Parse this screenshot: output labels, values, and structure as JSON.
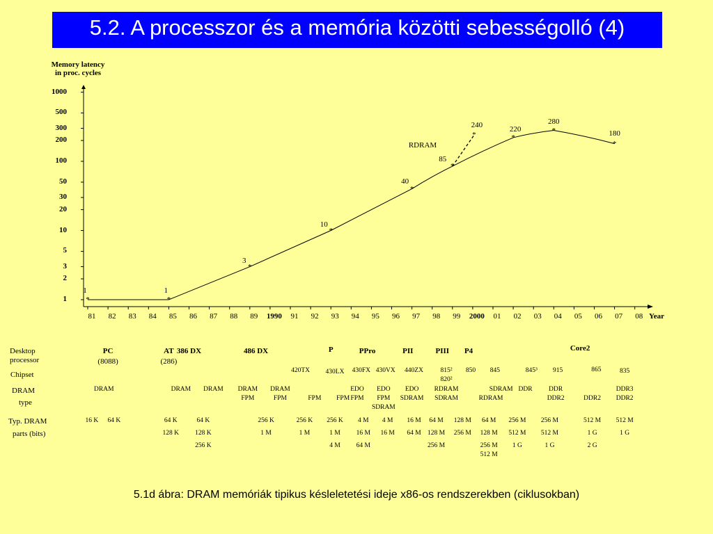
{
  "title": "5.2. A processzor és a memória közötti sebességolló (4)",
  "caption": "5.1d ábra: DRAM memóriák tipikus késleletetési ideje x86-os rendszerekben (ciklusokban)",
  "colors": {
    "background": "#ffff99",
    "title_bar": "#0000ff",
    "title_text": "#ffffff",
    "ink": "#000000"
  },
  "chart_data": {
    "type": "line",
    "ylabel": [
      "Memory latency",
      "in proc. cycles"
    ],
    "xlabel": "Year",
    "y_scale": "log",
    "ylim": [
      1,
      1000
    ],
    "y_ticks": [
      {
        "v": 1,
        "t": "1"
      },
      {
        "v": 2,
        "t": "2"
      },
      {
        "v": 3,
        "t": "3"
      },
      {
        "v": 5,
        "t": "5"
      },
      {
        "v": 10,
        "t": "10"
      },
      {
        "v": 20,
        "t": "20"
      },
      {
        "v": 30,
        "t": "30"
      },
      {
        "v": 50,
        "t": "50"
      },
      {
        "v": 100,
        "t": "100"
      },
      {
        "v": 200,
        "t": "200"
      },
      {
        "v": 300,
        "t": "300"
      },
      {
        "v": 500,
        "t": "500"
      },
      {
        "v": 1000,
        "t": "1000"
      }
    ],
    "x_ticks": [
      {
        "v": 1981,
        "t": "81"
      },
      {
        "v": 1982,
        "t": "82"
      },
      {
        "v": 1983,
        "t": "83"
      },
      {
        "v": 1984,
        "t": "84"
      },
      {
        "v": 1985,
        "t": "85"
      },
      {
        "v": 1986,
        "t": "86"
      },
      {
        "v": 1987,
        "t": "87"
      },
      {
        "v": 1988,
        "t": "88"
      },
      {
        "v": 1989,
        "t": "89"
      },
      {
        "v": 1990,
        "t": "1990",
        "bold": true
      },
      {
        "v": 1991,
        "t": "91"
      },
      {
        "v": 1992,
        "t": "92"
      },
      {
        "v": 1993,
        "t": "93"
      },
      {
        "v": 1994,
        "t": "94"
      },
      {
        "v": 1995,
        "t": "95"
      },
      {
        "v": 1996,
        "t": "96"
      },
      {
        "v": 1997,
        "t": "97"
      },
      {
        "v": 1998,
        "t": "98"
      },
      {
        "v": 1999,
        "t": "99"
      },
      {
        "v": 2000,
        "t": "2000",
        "bold": true
      },
      {
        "v": 2001,
        "t": "01"
      },
      {
        "v": 2002,
        "t": "02"
      },
      {
        "v": 2003,
        "t": "03"
      },
      {
        "v": 2004,
        "t": "04"
      },
      {
        "v": 2005,
        "t": "05"
      },
      {
        "v": 2006,
        "t": "06"
      },
      {
        "v": 2007,
        "t": "07"
      },
      {
        "v": 2008,
        "t": "08"
      }
    ],
    "points": [
      {
        "x": 1981,
        "y": 1,
        "label": "1"
      },
      {
        "x": 1985,
        "y": 1,
        "label": "1"
      },
      {
        "x": 1989,
        "y": 3,
        "label": "3"
      },
      {
        "x": 1993,
        "y": 10,
        "label": "10"
      },
      {
        "x": 1997,
        "y": 40,
        "label": "40"
      },
      {
        "x": 1999,
        "y": 85,
        "label": "85"
      },
      {
        "x": 2002,
        "y": 220,
        "label": "220"
      },
      {
        "x": 2004,
        "y": 280,
        "label": "280"
      },
      {
        "x": 2007,
        "y": 180,
        "label": "180"
      }
    ],
    "rdram_point": {
      "x": 2000,
      "y": 240,
      "label": "240"
    },
    "annotations": [
      {
        "text": "RDRAM"
      }
    ],
    "grid": false
  },
  "table": {
    "row_headers": [
      {
        "id": "processor",
        "lines": [
          "Desktop",
          "processor"
        ]
      },
      {
        "id": "chipset",
        "lines": [
          "Chipset"
        ]
      },
      {
        "id": "dram",
        "lines": [
          "DRAM",
          "type"
        ]
      },
      {
        "id": "parts",
        "lines": [
          "Typ. DRAM",
          "parts (bits)"
        ]
      }
    ],
    "processors": [
      {
        "t": "PC",
        "x": 1982
      },
      {
        "t": "(8088)",
        "x": 1982
      },
      {
        "t": "AT",
        "x": 1985
      },
      {
        "t": "386 DX",
        "x": 1986
      },
      {
        "t": "(286)",
        "x": 1985
      },
      {
        "t": "486 DX",
        "x": 1989.3
      },
      {
        "t": "P",
        "x": 1993
      },
      {
        "t": "PPro",
        "x": 1994.8
      },
      {
        "t": "PII",
        "x": 1996.8
      },
      {
        "t": "PIII",
        "x": 1998.5
      },
      {
        "t": "P4",
        "x": 1999.8
      },
      {
        "t": "Core2",
        "x": 2005.3
      }
    ],
    "chipsets": [
      {
        "t": "420TX",
        "x": 1991.5
      },
      {
        "t": "430LX",
        "x": 1993.2
      },
      {
        "t": "430FX",
        "x": 1994.5
      },
      {
        "t": "430VX",
        "x": 1995.7
      },
      {
        "t": "440ZX",
        "x": 1997.1
      },
      {
        "t": "815²",
        "x": 1998.7
      },
      {
        "t": "820²",
        "x": 1998.7
      },
      {
        "t": "850",
        "x": 1999.9
      },
      {
        "t": "845",
        "x": 2001.1
      },
      {
        "t": "845³",
        "x": 2002.9
      },
      {
        "t": "915",
        "x": 2004.2
      },
      {
        "t": "865",
        "x": 2006.1
      },
      {
        "t": "835",
        "x": 2007.5
      }
    ],
    "dram_types": [
      {
        "t": "DRAM",
        "x": 1981.8
      },
      {
        "t": "DRAM",
        "x": 1985.6
      },
      {
        "t": "DRAM",
        "x": 1987.2
      },
      {
        "t": "DRAM",
        "x": 1988.9
      },
      {
        "t": "FPM",
        "x": 1988.9
      },
      {
        "t": "DRAM",
        "x": 1990.5
      },
      {
        "t": "FPM",
        "x": 1990.5
      },
      {
        "t": "FPM",
        "x": 1992.2
      },
      {
        "t": "FPM",
        "x": 1993.6
      },
      {
        "t": "EDO",
        "x": 1994.3
      },
      {
        "t": "FPM",
        "x": 1994.3
      },
      {
        "t": "EDO",
        "x": 1995.6
      },
      {
        "t": "FPM",
        "x": 1995.6
      },
      {
        "t": "SDRAM",
        "x": 1995.6
      },
      {
        "t": "EDO",
        "x": 1997.0
      },
      {
        "t": "SDRAM",
        "x": 1997.0
      },
      {
        "t": "RDRAM",
        "x": 1998.7
      },
      {
        "t": "SDRAM",
        "x": 1998.7
      },
      {
        "t": "RDRAM",
        "x": 2000.9
      },
      {
        "t": "SDRAM",
        "x": 2001.4
      },
      {
        "t": "DDR",
        "x": 2002.6
      },
      {
        "t": "DDR",
        "x": 2004.1
      },
      {
        "t": "DDR2",
        "x": 2004.1
      },
      {
        "t": "DDR2",
        "x": 2005.9
      },
      {
        "t": "DDR3",
        "x": 2007.5
      },
      {
        "t": "DDR2",
        "x": 2007.5
      }
    ],
    "dram_parts": [
      {
        "t": "16 K",
        "x": 1981.2,
        "r": 0
      },
      {
        "t": "64 K",
        "x": 1982.3,
        "r": 0
      },
      {
        "t": "64 K",
        "x": 1985.1,
        "r": 0
      },
      {
        "t": "128 K",
        "x": 1985.1,
        "r": 1
      },
      {
        "t": "64 K",
        "x": 1986.7,
        "r": 0
      },
      {
        "t": "128 K",
        "x": 1986.7,
        "r": 1
      },
      {
        "t": "256 K",
        "x": 1986.7,
        "r": 2
      },
      {
        "t": "256 K",
        "x": 1989.8,
        "r": 0
      },
      {
        "t": "1 M",
        "x": 1989.8,
        "r": 1
      },
      {
        "t": "256 K",
        "x": 1991.7,
        "r": 0
      },
      {
        "t": "1 M",
        "x": 1991.7,
        "r": 1
      },
      {
        "t": "256 K",
        "x": 1993.2,
        "r": 0
      },
      {
        "t": "1 M",
        "x": 1993.2,
        "r": 1
      },
      {
        "t": "4 M",
        "x": 1993.2,
        "r": 2
      },
      {
        "t": "4 M",
        "x": 1994.6,
        "r": 0
      },
      {
        "t": "16 M",
        "x": 1994.6,
        "r": 1
      },
      {
        "t": "64 M",
        "x": 1994.6,
        "r": 2
      },
      {
        "t": "4 M",
        "x": 1995.8,
        "r": 0
      },
      {
        "t": "16 M",
        "x": 1995.8,
        "r": 1
      },
      {
        "t": "16 M",
        "x": 1997.1,
        "r": 0
      },
      {
        "t": "64 M",
        "x": 1997.1,
        "r": 1
      },
      {
        "t": "64 M",
        "x": 1998.2,
        "r": 0
      },
      {
        "t": "128 M",
        "x": 1998.2,
        "r": 1
      },
      {
        "t": "256 M",
        "x": 1998.2,
        "r": 2
      },
      {
        "t": "128 M",
        "x": 1999.5,
        "r": 0
      },
      {
        "t": "256 M",
        "x": 1999.5,
        "r": 1
      },
      {
        "t": "64 M",
        "x": 2000.8,
        "r": 0
      },
      {
        "t": "128 M",
        "x": 2000.8,
        "r": 1
      },
      {
        "t": "256 M",
        "x": 2000.8,
        "r": 2
      },
      {
        "t": "512 M",
        "x": 2000.8,
        "r": 3
      },
      {
        "t": "256 M",
        "x": 2002.2,
        "r": 0
      },
      {
        "t": "512 M",
        "x": 2002.2,
        "r": 1
      },
      {
        "t": "1 G",
        "x": 2002.2,
        "r": 2
      },
      {
        "t": "256 M",
        "x": 2003.8,
        "r": 0
      },
      {
        "t": "512 M",
        "x": 2003.8,
        "r": 1
      },
      {
        "t": "1 G",
        "x": 2003.8,
        "r": 2
      },
      {
        "t": "512 M",
        "x": 2005.9,
        "r": 0
      },
      {
        "t": "1 G",
        "x": 2005.9,
        "r": 1
      },
      {
        "t": "2 G",
        "x": 2005.9,
        "r": 2
      },
      {
        "t": "512 M",
        "x": 2007.5,
        "r": 0
      },
      {
        "t": "1 G",
        "x": 2007.5,
        "r": 1
      }
    ]
  }
}
